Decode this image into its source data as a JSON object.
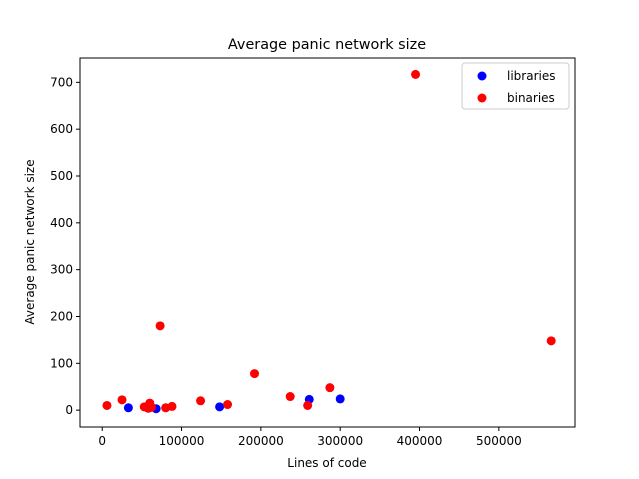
{
  "chart_data": {
    "type": "scatter",
    "title": "Average panic network size",
    "xlabel": "Lines of code",
    "ylabel": "Average panic network size",
    "xlim": [
      -28000,
      596000
    ],
    "ylim": [
      -36,
      752
    ],
    "xticks": [
      0,
      100000,
      200000,
      300000,
      400000,
      500000
    ],
    "xtick_labels": [
      "0",
      "100000",
      "200000",
      "300000",
      "400000",
      "500000"
    ],
    "yticks": [
      0,
      100,
      200,
      300,
      400,
      500,
      600,
      700
    ],
    "ytick_labels": [
      "0",
      "100",
      "200",
      "300",
      "400",
      "500",
      "600",
      "700"
    ],
    "grid": false,
    "legend_position": "top-right",
    "series": [
      {
        "name": "libraries",
        "color": "#0000ff",
        "points": [
          [
            33000,
            5
          ],
          [
            68000,
            3
          ],
          [
            148000,
            7
          ],
          [
            261000,
            23
          ],
          [
            300000,
            24
          ]
        ]
      },
      {
        "name": "binaries",
        "color": "#ff0000",
        "points": [
          [
            6000,
            10
          ],
          [
            25000,
            22
          ],
          [
            53000,
            7
          ],
          [
            58000,
            4
          ],
          [
            60000,
            15
          ],
          [
            62000,
            6
          ],
          [
            73000,
            180
          ],
          [
            80000,
            5
          ],
          [
            88000,
            8
          ],
          [
            124000,
            20
          ],
          [
            158000,
            12
          ],
          [
            192000,
            78
          ],
          [
            237000,
            29
          ],
          [
            259000,
            10
          ],
          [
            287000,
            48
          ],
          [
            395000,
            717
          ],
          [
            566000,
            148
          ]
        ]
      }
    ]
  }
}
